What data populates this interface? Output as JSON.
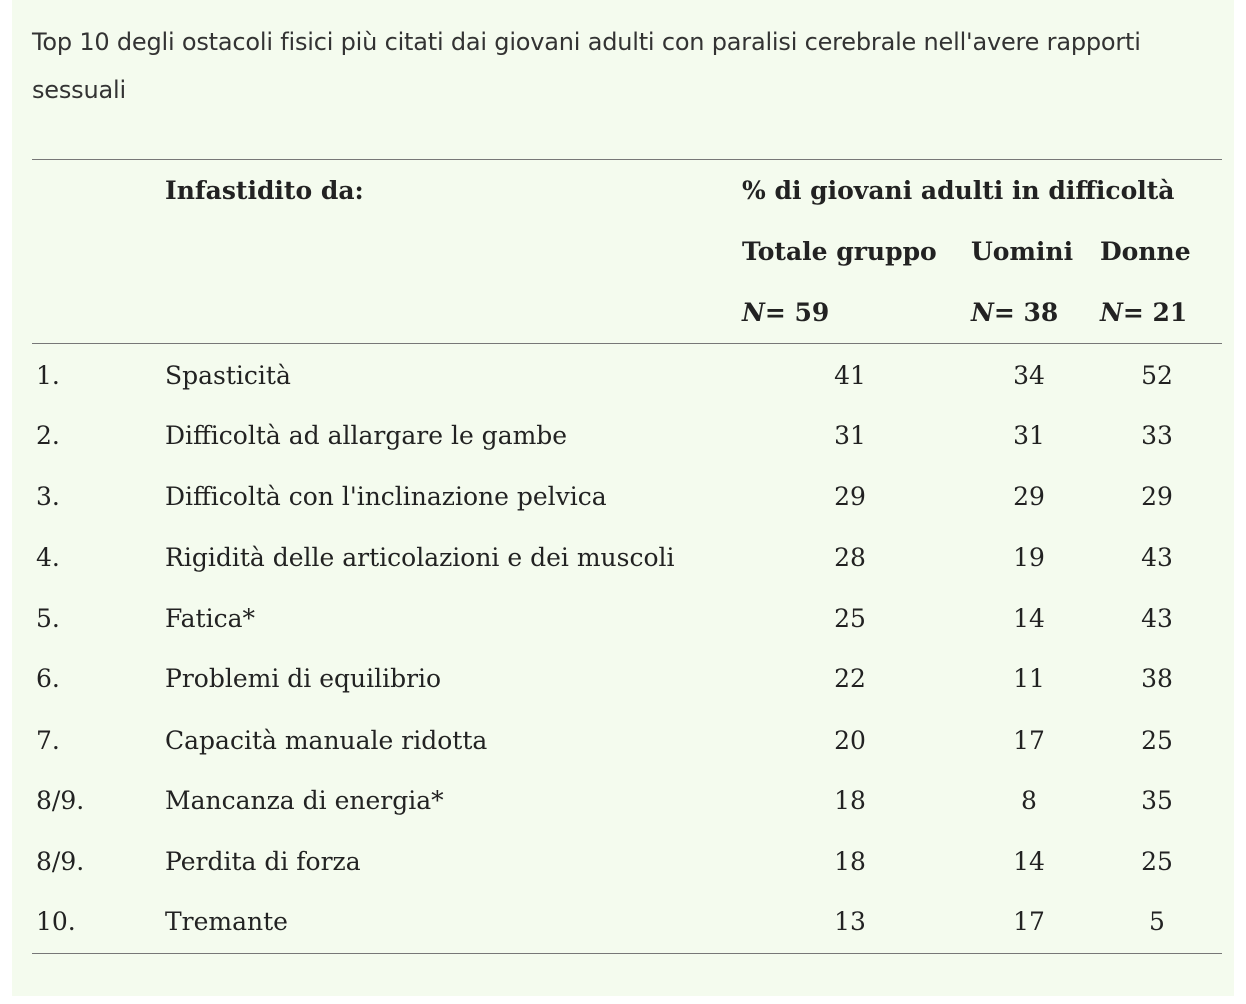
{
  "caption": "Top 10 degli ostacoli fisici più citati dai giovani adulti con paralisi cerebrale nell'avere rapporti sessuali",
  "header": {
    "bothered_by": "Infastidito da:",
    "percent_label": "% di giovani adulti in difficoltà",
    "columns": [
      {
        "label": "Totale gruppo",
        "n_symbol": "N",
        "n_value": "= 59"
      },
      {
        "label": "Uomini",
        "n_symbol": "N",
        "n_value": "= 38"
      },
      {
        "label": "Donne",
        "n_symbol": "N",
        "n_value": "= 21"
      }
    ]
  },
  "rows": [
    {
      "rank": "1.",
      "label": "Spasticità",
      "total": "41",
      "men": "34",
      "women": "52"
    },
    {
      "rank": "2.",
      "label": "Difficoltà ad allargare le gambe",
      "total": "31",
      "men": "31",
      "women": "33"
    },
    {
      "rank": "3.",
      "label": "Difficoltà con l'inclinazione pelvica",
      "total": "29",
      "men": "29",
      "women": "29"
    },
    {
      "rank": "4.",
      "label": "Rigidità delle articolazioni e dei muscoli",
      "total": "28",
      "men": "19",
      "women": "43"
    },
    {
      "rank": "5.",
      "label": "Fatica*",
      "total": "25",
      "men": "14",
      "women": "43"
    },
    {
      "rank": "6.",
      "label": "Problemi di equilibrio",
      "total": "22",
      "men": "11",
      "women": "38"
    },
    {
      "rank": "7.",
      "label": "Capacità manuale ridotta",
      "total": "20",
      "men": "17",
      "women": "25"
    },
    {
      "rank": "8/9.",
      "label": "Mancanza di energia*",
      "total": "18",
      "men": "8",
      "women": "35"
    },
    {
      "rank": "8/9.",
      "label": "Perdita di forza",
      "total": "18",
      "men": "14",
      "women": "25"
    },
    {
      "rank": "10.",
      "label": "Tremante",
      "total": "13",
      "men": "17",
      "women": "5"
    }
  ]
}
